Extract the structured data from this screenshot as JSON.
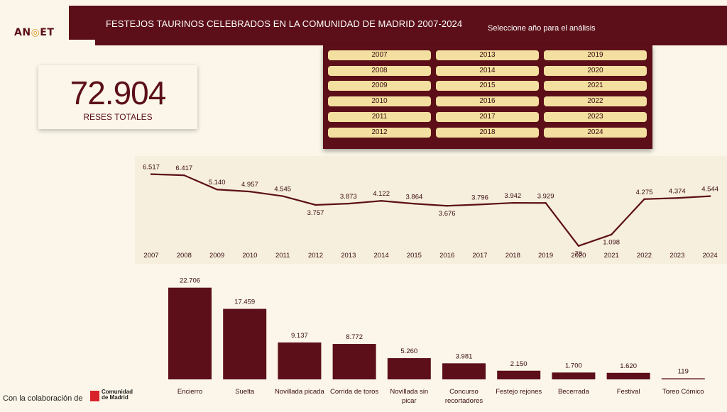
{
  "logo": {
    "text_left": "AN",
    "text_ring": "◎",
    "text_right": "ET"
  },
  "header": {
    "title": "FESTEJOS TAURINOS CELEBRADOS EN LA COMUNIDAD DE MADRID 2007-2024",
    "subtitle": "Seleccione año para el análisis"
  },
  "total": {
    "value": "72.904",
    "label": "RESES TOTALES"
  },
  "year_buttons": [
    "2007",
    "2008",
    "2009",
    "2010",
    "2011",
    "2012",
    "2013",
    "2014",
    "2015",
    "2016",
    "2017",
    "2018",
    "2019",
    "2020",
    "2021",
    "2022",
    "2023",
    "2024"
  ],
  "colors": {
    "primary": "#5c0f18",
    "button": "#f3e0a0",
    "background": "#fbf6e9",
    "panel": "#f6efdd"
  },
  "chart_data": [
    {
      "type": "line",
      "x": [
        "2007",
        "2008",
        "2009",
        "2010",
        "2011",
        "2012",
        "2013",
        "2014",
        "2015",
        "2016",
        "2017",
        "2018",
        "2019",
        "2020",
        "2021",
        "2022",
        "2023",
        "2024"
      ],
      "values": [
        6517,
        6417,
        5140,
        4957,
        4545,
        3757,
        3873,
        4122,
        3864,
        3676,
        3796,
        3942,
        3929,
        78,
        1098,
        4275,
        4374,
        4544
      ],
      "labels": [
        "6.517",
        "6.417",
        "5.140",
        "4.957",
        "4.545",
        "3.757",
        "3.873",
        "4.122",
        "3.864",
        "3.676",
        "3.796",
        "3.942",
        "3.929",
        "78",
        "1.098",
        "4.275",
        "4.374",
        "4.544"
      ],
      "ylim": [
        0,
        7000
      ]
    },
    {
      "type": "bar",
      "categories": [
        "Encierro",
        "Suelta",
        "Novillada picada",
        "Corrida de toros",
        "Novillada sin picar",
        "Concurso recortadores",
        "Festejo rejones",
        "Becerrada",
        "Festival",
        "Toreo Cómico"
      ],
      "values": [
        22706,
        17459,
        9137,
        8772,
        5260,
        3981,
        2150,
        1700,
        1620,
        119
      ],
      "labels": [
        "22.706",
        "17.459",
        "9.137",
        "8.772",
        "5.260",
        "3.981",
        "2.150",
        "1.700",
        "1.620",
        "119"
      ],
      "ylim": [
        0,
        23000
      ]
    }
  ],
  "footer": {
    "text": "Con la colaboración de",
    "partner_line1": "Comunidad",
    "partner_line2": "de Madrid"
  }
}
